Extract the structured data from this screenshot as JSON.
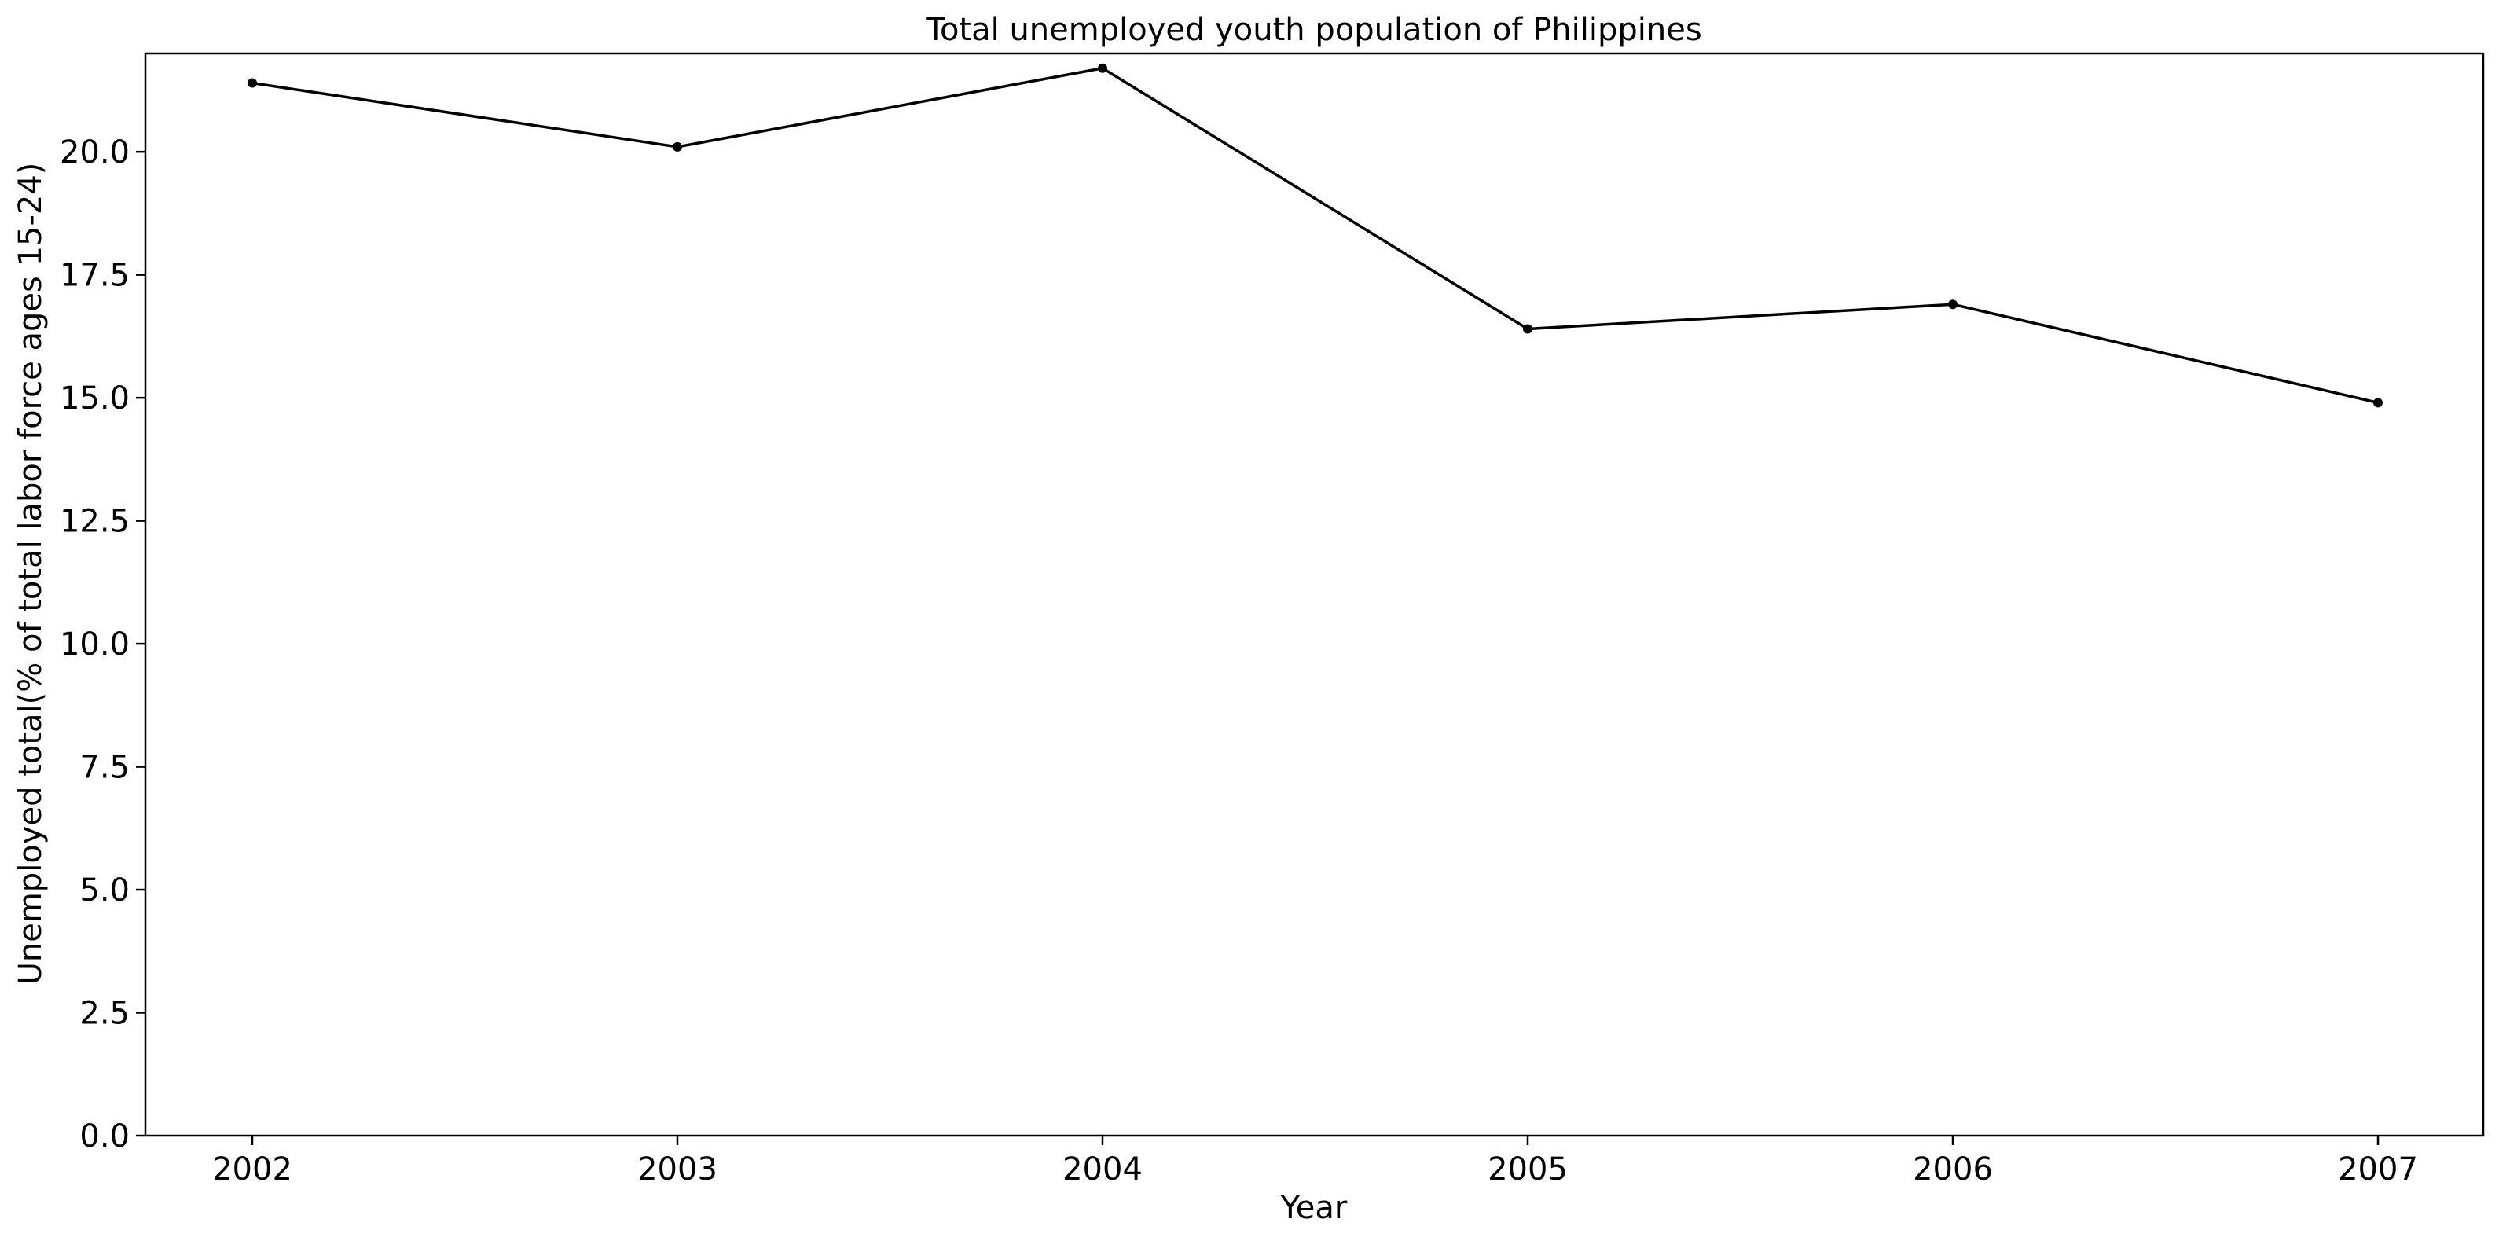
{
  "chart_data": {
    "type": "line",
    "title": "Total unemployed youth population of Philippines",
    "xlabel": "Year",
    "ylabel": "Unemployed total(% of total labor force ages 15-24)",
    "x": [
      "2002",
      "2003",
      "2004",
      "2005",
      "2006",
      "2007"
    ],
    "series": [
      {
        "values": [
          21.4,
          20.1,
          21.7,
          16.4,
          16.9,
          14.9
        ]
      }
    ],
    "ylim": [
      0,
      22
    ],
    "yticks": [
      "0.0",
      "2.5",
      "5.0",
      "7.5",
      "10.0",
      "12.5",
      "15.0",
      "17.5",
      "20.0"
    ],
    "grid": false,
    "legend": "none",
    "colors": {
      "line": "#000000",
      "marker": "#000000"
    }
  }
}
